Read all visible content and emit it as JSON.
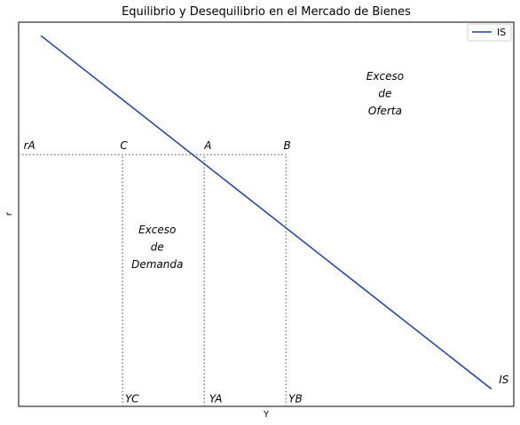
{
  "chart_data": {
    "type": "line",
    "title": "Equilibrio y Desequilibrio en el Mercado de Bienes",
    "xlabel": "Y",
    "ylabel": "r",
    "xlim": [
      0,
      10
    ],
    "ylim": [
      0,
      10
    ],
    "grid": false,
    "legend_position": "top-right",
    "series": [
      {
        "name": "IS",
        "color": "#1f3fa8",
        "points": [
          [
            0.45,
            9.65
          ],
          [
            9.55,
            0.45
          ]
        ]
      }
    ],
    "reference_lines": {
      "horizontal": {
        "y": 6.55,
        "x_from": 0,
        "x_to": 5.4
      },
      "vertical": [
        {
          "x": 2.1,
          "y_from": 0,
          "y_to": 6.55
        },
        {
          "x": 3.75,
          "y_from": 0,
          "y_to": 6.55
        },
        {
          "x": 5.4,
          "y_from": 0,
          "y_to": 6.55
        }
      ],
      "style": "dotted",
      "color": "#808080"
    },
    "point_labels": [
      {
        "text": "rA",
        "x": 0.1,
        "y": 6.7
      },
      {
        "text": "C",
        "x": 2.05,
        "y": 6.7
      },
      {
        "text": "A",
        "x": 3.75,
        "y": 6.7
      },
      {
        "text": "B",
        "x": 5.35,
        "y": 6.7
      },
      {
        "text": "YC",
        "x": 2.15,
        "y": 0.1
      },
      {
        "text": "YA",
        "x": 3.85,
        "y": 0.1
      },
      {
        "text": "YB",
        "x": 5.45,
        "y": 0.1
      },
      {
        "text": "IS",
        "x": 9.7,
        "y": 0.6
      }
    ],
    "region_annotations": [
      {
        "lines": [
          "Exceso",
          "de",
          "Oferta"
        ],
        "x": 7.4,
        "y": 8.5
      },
      {
        "lines": [
          "Exceso",
          "de",
          "Demanda"
        ],
        "x": 2.8,
        "y": 4.5
      }
    ]
  }
}
